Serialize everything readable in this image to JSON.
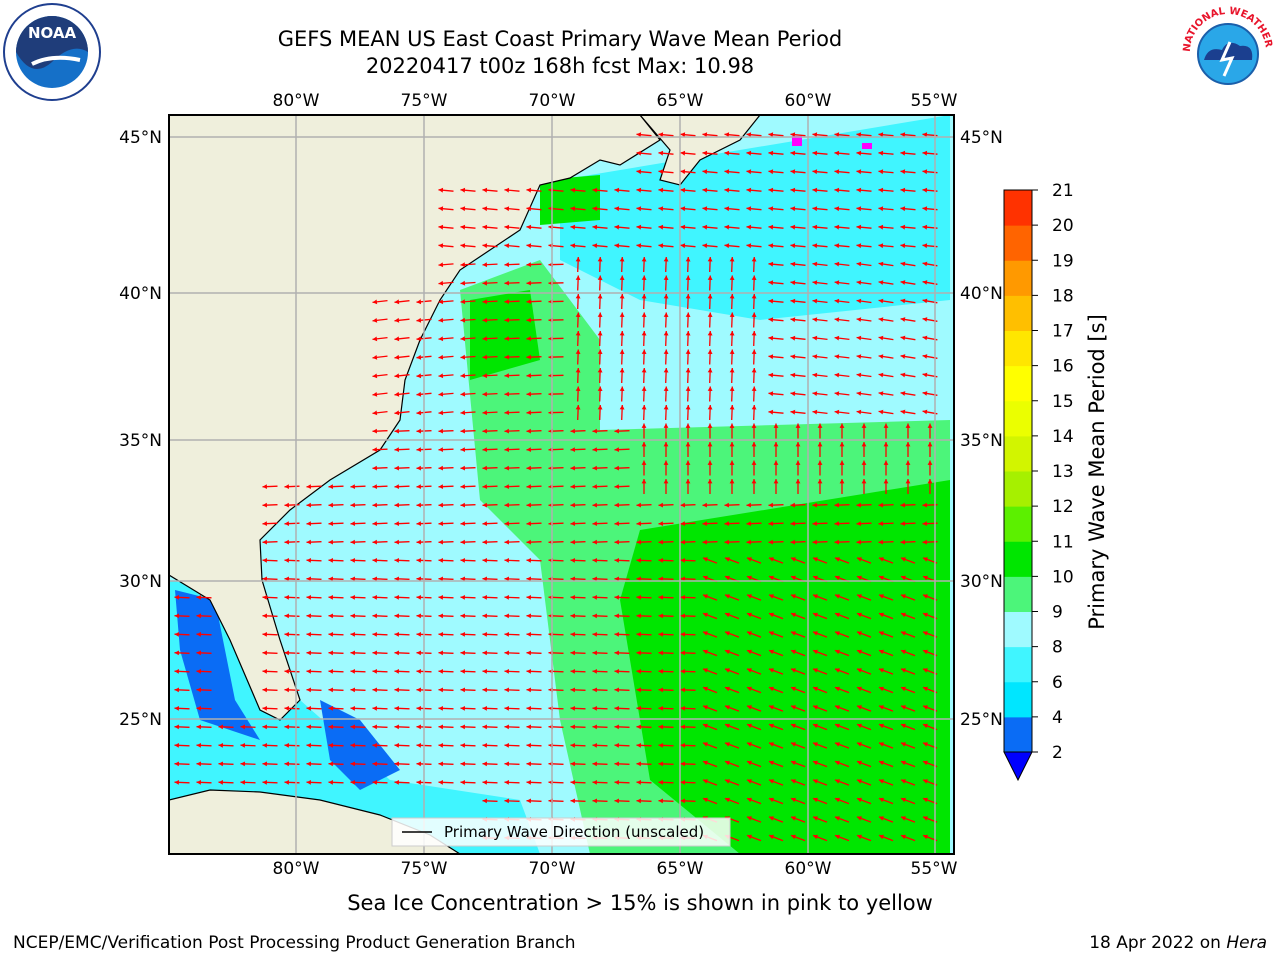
{
  "header": {
    "title_line1": "GEFS MEAN US East Coast Primary Wave Mean Period",
    "title_line2": "20220417 t00z 168h fcst   Max: 10.98"
  },
  "logos": {
    "left": {
      "icon": "noaa-logo-icon",
      "text": "NOAA"
    },
    "right": {
      "icon": "nws-logo-icon",
      "text": "NATIONAL WEATHER SERVICE"
    }
  },
  "map": {
    "lon_labels": [
      "80°W",
      "75°W",
      "70°W",
      "65°W",
      "60°W",
      "55°W"
    ],
    "lat_labels": [
      "45°N",
      "40°N",
      "35°N",
      "30°N",
      "25°N"
    ],
    "legend_label": "Primary Wave Direction (unscaled)",
    "land_color": "#efefdc",
    "arrow_color": "#ff0000"
  },
  "colorbar": {
    "label": "Primary Wave Mean Period [s]",
    "ticks": [
      "2",
      "4",
      "6",
      "8",
      "9",
      "10",
      "11",
      "12",
      "13",
      "14",
      "15",
      "16",
      "17",
      "18",
      "19",
      "20",
      "21"
    ],
    "colors": [
      "#0a6cf5",
      "#00e6ff",
      "#40f5ff",
      "#9ffaff",
      "#4cf57a",
      "#00e600",
      "#5cf000",
      "#a6f000",
      "#d2f500",
      "#ebff00",
      "#ffff00",
      "#ffe600",
      "#ffbf00",
      "#ff9900",
      "#ff6400",
      "#ff3200"
    ],
    "under_color": "#0000ff",
    "top_color": "#ff0000"
  },
  "caption": "Sea Ice Concentration > 15% is shown in pink to yellow",
  "footer": {
    "left": "NCEP/EMC/Verification Post Processing Product Generation Branch",
    "right_prefix": "18 Apr 2022 on ",
    "right_host": "Hera"
  }
}
